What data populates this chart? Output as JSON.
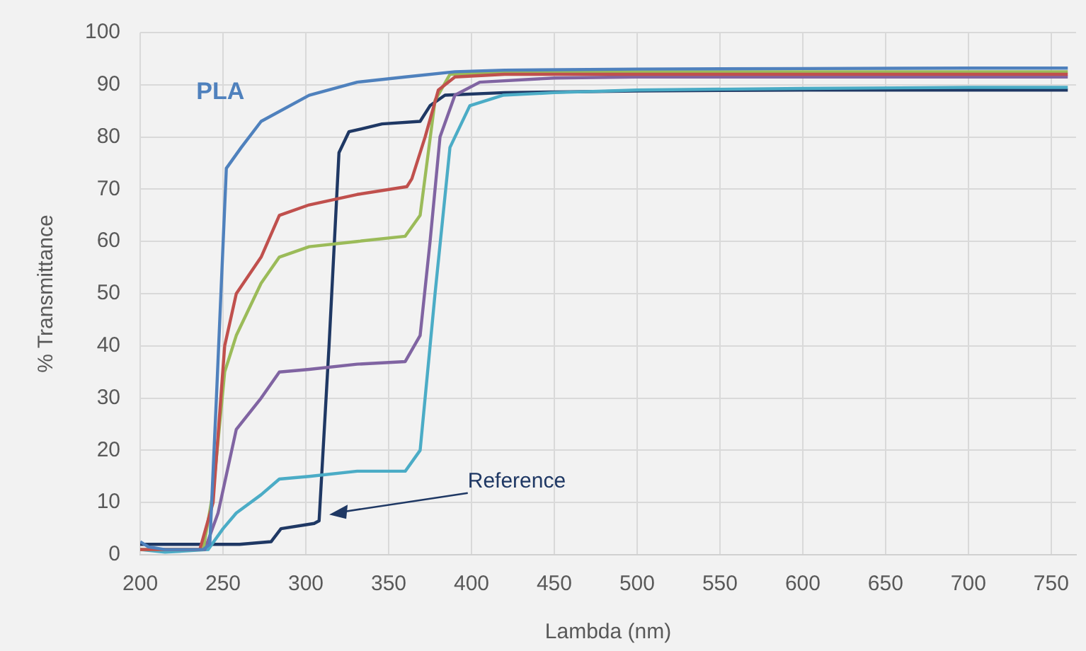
{
  "chart_data": {
    "type": "line",
    "xlabel": "Lambda (nm)",
    "ylabel": "% Transmittance",
    "xlim": [
      200,
      765
    ],
    "xticks": [
      200,
      250,
      300,
      350,
      400,
      450,
      500,
      550,
      600,
      650,
      700,
      750
    ],
    "ylim": [
      0,
      100
    ],
    "yticks": [
      0,
      10,
      20,
      30,
      40,
      50,
      60,
      70,
      80,
      90,
      100
    ],
    "grid": true,
    "legend": false,
    "marker": "none",
    "line_style": "solid",
    "series": [
      {
        "name": "PLA",
        "color": "#4f81bd",
        "x": [
          200,
          205,
          215,
          230,
          238,
          242,
          246,
          252,
          261,
          273,
          302,
          331,
          360,
          390,
          420,
          500,
          600,
          700,
          760
        ],
        "values": [
          2.5,
          1.5,
          1,
          1,
          1,
          2,
          30,
          74,
          78,
          83,
          88,
          90.5,
          91.5,
          92.5,
          92.8,
          93,
          93.1,
          93.2,
          93.2
        ]
      },
      {
        "color": "#c0504d",
        "x": [
          200,
          215,
          236,
          244,
          251,
          258,
          273,
          284,
          302,
          331,
          361,
          364,
          372,
          380,
          390,
          420,
          500,
          600,
          700,
          760
        ],
        "values": [
          1,
          1,
          1,
          10,
          40,
          50,
          57,
          65,
          67,
          69,
          70.5,
          72,
          80,
          89,
          91.5,
          92,
          92,
          92,
          92,
          92
        ]
      },
      {
        "color": "#9bbb59",
        "x": [
          200,
          215,
          238,
          244,
          251,
          258,
          273,
          284,
          302,
          331,
          360,
          369,
          378,
          387,
          420,
          500,
          600,
          700,
          760
        ],
        "values": [
          1,
          1,
          1,
          12,
          35,
          42,
          52,
          57,
          59,
          60,
          61,
          65,
          87,
          92,
          92.4,
          92.5,
          92.5,
          92.5,
          92.5
        ]
      },
      {
        "color": "#8064a2",
        "x": [
          200,
          215,
          239,
          247,
          258,
          273,
          284,
          302,
          331,
          360,
          369,
          375,
          381,
          390,
          405,
          450,
          500,
          600,
          700,
          760
        ],
        "values": [
          1,
          1,
          1,
          8,
          24,
          30,
          35,
          35.5,
          36.5,
          37,
          42,
          60,
          80,
          88,
          90.5,
          91.3,
          91.5,
          91.5,
          91.5,
          91.5
        ]
      },
      {
        "color": "#4bacc6",
        "x": [
          200,
          215,
          241,
          250,
          258,
          273,
          284,
          302,
          331,
          360,
          369,
          378,
          387,
          399,
          419,
          450,
          500,
          600,
          700,
          760
        ],
        "values": [
          1,
          0.5,
          1,
          5,
          8,
          11.5,
          14.5,
          15,
          16,
          16,
          20,
          50,
          78,
          86,
          88,
          88.5,
          89,
          89.3,
          89.5,
          89.5
        ]
      },
      {
        "name": "Reference",
        "color": "#1f3864",
        "x": [
          200,
          230,
          260,
          279,
          285,
          305,
          308,
          314,
          320,
          326,
          346,
          369,
          375,
          384,
          420,
          500,
          600,
          700,
          760
        ],
        "values": [
          2,
          2,
          2,
          2.5,
          5,
          6,
          6.5,
          40,
          77,
          81,
          82.5,
          83,
          86,
          88,
          88.5,
          88.8,
          89,
          89,
          89
        ]
      }
    ]
  }
}
